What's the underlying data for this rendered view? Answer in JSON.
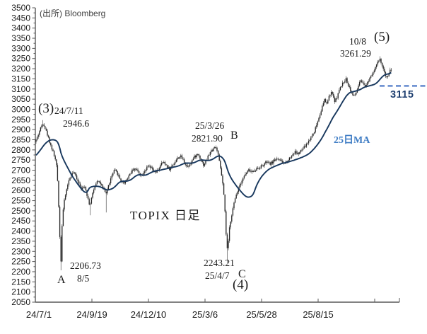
{
  "source_label": "(出所) Bloomberg",
  "chart_data": {
    "type": "candlestick",
    "title": "TOPIX 日足",
    "y_axis": {
      "min": 2050,
      "max": 3500,
      "tick_step": 50,
      "minor_step": 25
    },
    "x_axis": {
      "labels": [
        "24/7/1",
        "24/9/19",
        "24/12/10",
        "25/3/6",
        "25/5/28",
        "25/8/15"
      ]
    },
    "moving_average": {
      "label": "25日MA",
      "period": 25,
      "color": "#17375d"
    },
    "reference_line": {
      "label": "3115",
      "value": 3115,
      "style": "dashed",
      "color": "#4472c4"
    },
    "key_points": [
      {
        "wave": "(3)",
        "date": "24/7/11",
        "value": 2946.6,
        "kind": "high"
      },
      {
        "wave": "A",
        "date": "8/5",
        "value": 2206.73,
        "kind": "low"
      },
      {
        "wave": "B",
        "date": "25/3/26",
        "value": 2821.9,
        "kind": "high"
      },
      {
        "wave": "C",
        "date": "25/4/7",
        "value": 2243.21,
        "kind": "low"
      },
      {
        "wave": "(4)",
        "date": "25/4/7",
        "value": 2243.21,
        "kind": "low"
      },
      {
        "wave": "(5)",
        "date": "10/8",
        "value": 3261.29,
        "kind": "high"
      }
    ],
    "price_path": [
      [
        50,
        2840
      ],
      [
        53,
        2865
      ],
      [
        56,
        2895
      ],
      [
        59,
        2920
      ],
      [
        61,
        2935
      ],
      [
        63,
        2915
      ],
      [
        66,
        2885
      ],
      [
        69,
        2855
      ],
      [
        72,
        2820
      ],
      [
        75,
        2790
      ],
      [
        78,
        2755
      ],
      [
        80,
        2715
      ],
      [
        82,
        2620
      ],
      [
        84,
        2430
      ],
      [
        86,
        2235
      ],
      [
        88,
        2450
      ],
      [
        90,
        2530
      ],
      [
        93,
        2585
      ],
      [
        96,
        2635
      ],
      [
        100,
        2670
      ],
      [
        104,
        2690
      ],
      [
        108,
        2665
      ],
      [
        112,
        2635
      ],
      [
        116,
        2605
      ],
      [
        120,
        2625
      ],
      [
        124,
        2565
      ],
      [
        127,
        2525
      ],
      [
        130,
        2570
      ],
      [
        134,
        2620
      ],
      [
        138,
        2655
      ],
      [
        142,
        2635
      ],
      [
        146,
        2605
      ],
      [
        150,
        2585
      ],
      [
        154,
        2630
      ],
      [
        158,
        2670
      ],
      [
        162,
        2700
      ],
      [
        166,
        2685
      ],
      [
        170,
        2655
      ],
      [
        175,
        2635
      ],
      [
        180,
        2660
      ],
      [
        185,
        2690
      ],
      [
        190,
        2710
      ],
      [
        195,
        2695
      ],
      [
        200,
        2675
      ],
      [
        205,
        2700
      ],
      [
        210,
        2720
      ],
      [
        215,
        2705
      ],
      [
        220,
        2685
      ],
      [
        225,
        2710
      ],
      [
        230,
        2740
      ],
      [
        235,
        2725
      ],
      [
        240,
        2705
      ],
      [
        245,
        2730
      ],
      [
        250,
        2755
      ],
      [
        255,
        2770
      ],
      [
        260,
        2745
      ],
      [
        265,
        2715
      ],
      [
        270,
        2740
      ],
      [
        275,
        2765
      ],
      [
        280,
        2780
      ],
      [
        284,
        2755
      ],
      [
        288,
        2725
      ],
      [
        292,
        2750
      ],
      [
        296,
        2780
      ],
      [
        300,
        2800
      ],
      [
        304,
        2815
      ],
      [
        307,
        2800
      ],
      [
        310,
        2745
      ],
      [
        313,
        2685
      ],
      [
        316,
        2605
      ],
      [
        318,
        2505
      ],
      [
        320,
        2370
      ],
      [
        322,
        2290
      ],
      [
        324,
        2400
      ],
      [
        327,
        2470
      ],
      [
        330,
        2520
      ],
      [
        334,
        2580
      ],
      [
        338,
        2620
      ],
      [
        342,
        2650
      ],
      [
        347,
        2680
      ],
      [
        352,
        2700
      ],
      [
        357,
        2690
      ],
      [
        362,
        2705
      ],
      [
        367,
        2715
      ],
      [
        372,
        2725
      ],
      [
        377,
        2740
      ],
      [
        382,
        2730
      ],
      [
        387,
        2745
      ],
      [
        392,
        2760
      ],
      [
        397,
        2745
      ],
      [
        402,
        2732
      ],
      [
        407,
        2750
      ],
      [
        412,
        2770
      ],
      [
        417,
        2790
      ],
      [
        422,
        2780
      ],
      [
        427,
        2800
      ],
      [
        432,
        2820
      ],
      [
        436,
        2840
      ],
      [
        440,
        2862
      ],
      [
        444,
        2888
      ],
      [
        448,
        2925
      ],
      [
        452,
        2970
      ],
      [
        456,
        3015
      ],
      [
        459,
        3045
      ],
      [
        462,
        3028
      ],
      [
        465,
        3055
      ],
      [
        468,
        3085
      ],
      [
        471,
        3065
      ],
      [
        474,
        3038
      ],
      [
        477,
        3065
      ],
      [
        480,
        3095
      ],
      [
        483,
        3115
      ],
      [
        486,
        3135
      ],
      [
        489,
        3150
      ],
      [
        492,
        3128
      ],
      [
        495,
        3100
      ],
      [
        498,
        3078
      ],
      [
        501,
        3062
      ],
      [
        504,
        3085
      ],
      [
        507,
        3115
      ],
      [
        510,
        3140
      ],
      [
        513,
        3125
      ],
      [
        516,
        3108
      ],
      [
        519,
        3125
      ],
      [
        522,
        3148
      ],
      [
        525,
        3168
      ],
      [
        528,
        3188
      ],
      [
        531,
        3208
      ],
      [
        534,
        3228
      ],
      [
        537,
        3245
      ],
      [
        540,
        3222
      ],
      [
        543,
        3185
      ],
      [
        546,
        3158
      ],
      [
        549,
        3172
      ],
      [
        552,
        3198
      ],
      [
        554,
        3185
      ]
    ],
    "gen": {
      "key_highs": [
        [
          61,
          2946.6
        ],
        [
          305,
          2821.9
        ],
        [
          537,
          3261.29
        ]
      ],
      "key_lows": [
        [
          86,
          2206.73
        ],
        [
          322,
          2243.21
        ]
      ],
      "wick_lows": [
        [
          127,
          2478
        ],
        [
          150,
          2492
        ]
      ],
      "ma_prehistory": {
        "from": 2700,
        "to": 2835,
        "days": 25
      }
    }
  },
  "annotations": {
    "source": "(出所) Bloomberg",
    "chart_title": "TOPIX 日足",
    "wave3": "(3)",
    "wave4": "(4)",
    "wave5": "(5)",
    "pointA": "A",
    "pointB": "B",
    "pointC": "C",
    "peak1_date": "24/7/11",
    "peak1_value": "2946.6",
    "low1_value": "2206.73",
    "low1_date": "8/5",
    "peak2_date": "25/3/26",
    "peak2_value": "2821.90",
    "low2_value": "2243.21",
    "low2_date": "25/4/7",
    "peak3_date": "10/8",
    "peak3_value": "3261.29",
    "ma_label": "25日MA",
    "ref_label": "3115"
  },
  "colors": {
    "candle": "#262626",
    "ma_line": "#17375d",
    "reference_line": "#4472c4",
    "ref_label": "#1e3f70",
    "ma_label": "#3e7cc4",
    "axis": "#595959",
    "tick_text": "#1a1a1a"
  }
}
